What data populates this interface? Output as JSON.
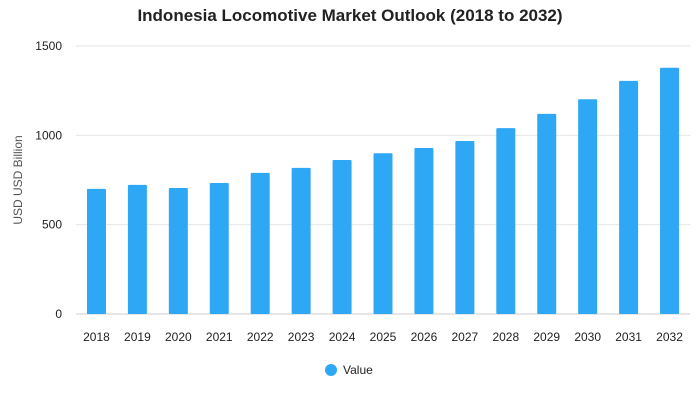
{
  "chart_data": {
    "type": "bar",
    "title": "Indonesia Locomotive Market Outlook (2018 to 2032)",
    "xlabel": "",
    "ylabel": "USD USD Billion",
    "categories": [
      "2018",
      "2019",
      "2020",
      "2021",
      "2022",
      "2023",
      "2024",
      "2025",
      "2026",
      "2027",
      "2028",
      "2029",
      "2030",
      "2031",
      "2032"
    ],
    "series": [
      {
        "name": "Value",
        "values": [
          700,
          723,
          705,
          733,
          790,
          818,
          862,
          900,
          929,
          968,
          1040,
          1120,
          1202,
          1305,
          1378
        ],
        "color": "#2ea8f5"
      }
    ],
    "ylim": [
      0,
      1500
    ],
    "yticks": [
      0,
      500,
      1000,
      1500
    ],
    "grid": true,
    "legend_position": "bottom-center"
  }
}
